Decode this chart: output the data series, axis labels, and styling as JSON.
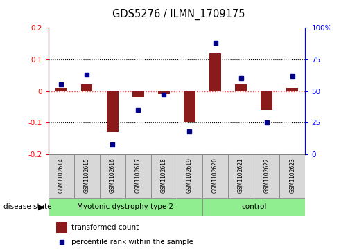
{
  "title": "GDS5276 / ILMN_1709175",
  "samples": [
    "GSM1102614",
    "GSM1102615",
    "GSM1102616",
    "GSM1102617",
    "GSM1102618",
    "GSM1102619",
    "GSM1102620",
    "GSM1102621",
    "GSM1102622",
    "GSM1102623"
  ],
  "transformed_count": [
    0.01,
    0.02,
    -0.13,
    -0.02,
    -0.01,
    -0.1,
    0.12,
    0.02,
    -0.06,
    0.01
  ],
  "percentile_rank": [
    55,
    63,
    8,
    35,
    47,
    18,
    88,
    60,
    25,
    62
  ],
  "disease_groups": [
    {
      "label": "Myotonic dystrophy type 2",
      "start": 0,
      "end": 6,
      "color": "#90EE90"
    },
    {
      "label": "control",
      "start": 6,
      "end": 10,
      "color": "#90EE90"
    }
  ],
  "ylim_left": [
    -0.2,
    0.2
  ],
  "ylim_right": [
    0,
    100
  ],
  "yticks_left": [
    -0.2,
    -0.1,
    0.0,
    0.1,
    0.2
  ],
  "ytick_labels_left": [
    "-0.2",
    "-0.1",
    "0",
    "0.1",
    "0.2"
  ],
  "yticks_right": [
    0,
    25,
    50,
    75,
    100
  ],
  "ytick_labels_right": [
    "0",
    "25",
    "50",
    "75",
    "100%"
  ],
  "bar_color": "#8B1A1A",
  "dot_color": "#00008B",
  "hline_color": "#FF4444",
  "grid_color": "black",
  "bg_color": "#D8D8D8",
  "legend_bar_label": "transformed count",
  "legend_dot_label": "percentile rank within the sample",
  "disease_label": "disease state"
}
